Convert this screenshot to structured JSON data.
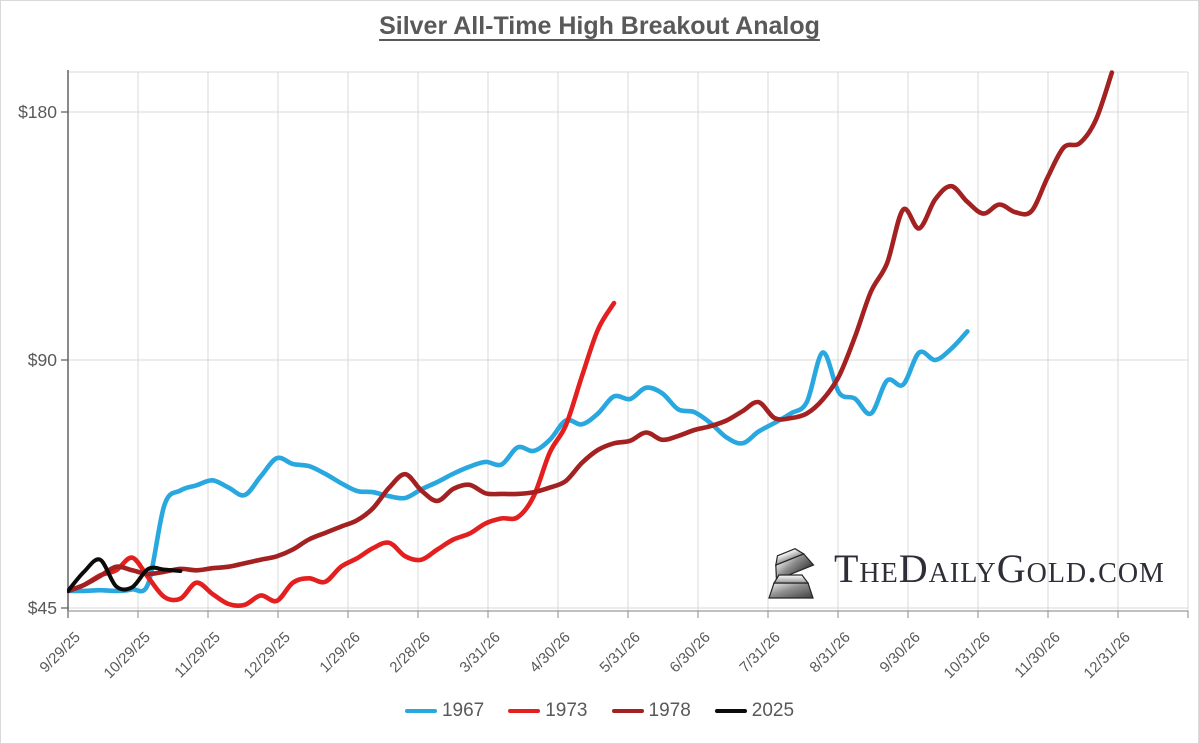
{
  "brand": {
    "name": "TheDailyGold.com"
  },
  "chart_data": {
    "type": "line",
    "title": "Silver All-Time High Breakout Analog",
    "grid": true,
    "legend_position": "bottom",
    "x_axis": {
      "start": "9/29/25",
      "end": "12/31/26",
      "point_interval": "weekly",
      "tick_labels": [
        "9/29/25",
        "10/29/25",
        "11/29/25",
        "12/29/25",
        "1/29/26",
        "2/28/26",
        "3/31/26",
        "4/30/26",
        "5/31/26",
        "6/30/26",
        "7/31/26",
        "8/31/26",
        "9/30/26",
        "10/31/26",
        "11/30/26",
        "12/31/26"
      ]
    },
    "y_axis": {
      "scale": "log2",
      "unit": "USD",
      "tick_values": [
        45,
        90,
        180
      ],
      "tick_labels": [
        "$45",
        "$90",
        "$180"
      ],
      "ylim": [
        45,
        202
      ]
    },
    "series": [
      {
        "name": "1967",
        "color": "#29A8E0",
        "values": [
          47.2,
          47.2,
          47.3,
          47.2,
          47.4,
          48.2,
          60,
          62.5,
          63.4,
          64.3,
          63,
          61.7,
          65,
          68.4,
          67.3,
          66.9,
          65.5,
          63.8,
          62.4,
          62.2,
          61.5,
          61.2,
          62.7,
          64,
          65.5,
          66.8,
          67.7,
          67.2,
          70.5,
          69.8,
          72,
          76,
          75.2,
          77.5,
          81.3,
          80.7,
          83.3,
          82,
          78.4,
          77.8,
          75.5,
          72.5,
          71.3,
          73.7,
          75.5,
          77.5,
          80,
          91.9,
          82.2,
          80.8,
          77.5,
          85,
          84,
          91.9,
          90,
          92.9,
          97.5
        ]
      },
      {
        "name": "1973",
        "color": "#E41F1F",
        "values": [
          47.2,
          48,
          49.3,
          50,
          51.8,
          49,
          46.4,
          46.2,
          48.3,
          46.8,
          45.5,
          45.4,
          46.6,
          45.9,
          48.3,
          48.9,
          48.4,
          50.5,
          51.7,
          53.2,
          54,
          52,
          51.5,
          53,
          54.5,
          55.4,
          57,
          57.8,
          58,
          61.5,
          69.5,
          75,
          86,
          98,
          105.5
        ]
      },
      {
        "name": "1978",
        "color": "#A32121",
        "values": [
          47.2,
          48,
          49.2,
          50.5,
          50,
          49.5,
          49.8,
          50.2,
          50,
          50.3,
          50.5,
          51,
          51.5,
          52,
          53,
          54.5,
          55.5,
          56.5,
          57.5,
          59.5,
          63,
          65.4,
          62.5,
          60.7,
          62.8,
          63.5,
          62,
          61.9,
          61.9,
          62.2,
          63,
          64.2,
          67.5,
          70,
          71.3,
          71.8,
          73.5,
          72,
          72.8,
          74,
          74.8,
          76,
          78,
          80,
          76.5,
          76.5,
          77.5,
          80.6,
          86,
          96,
          109,
          118,
          137,
          130,
          141,
          146.3,
          140,
          135.5,
          139,
          136,
          136.5,
          150,
          163,
          165,
          176,
          201
        ]
      },
      {
        "name": "2025",
        "color": "#0B0B0B",
        "values": [
          47.2,
          49.8,
          51.5,
          47.8,
          47.7,
          50.2,
          50.1,
          49.9
        ]
      }
    ]
  }
}
